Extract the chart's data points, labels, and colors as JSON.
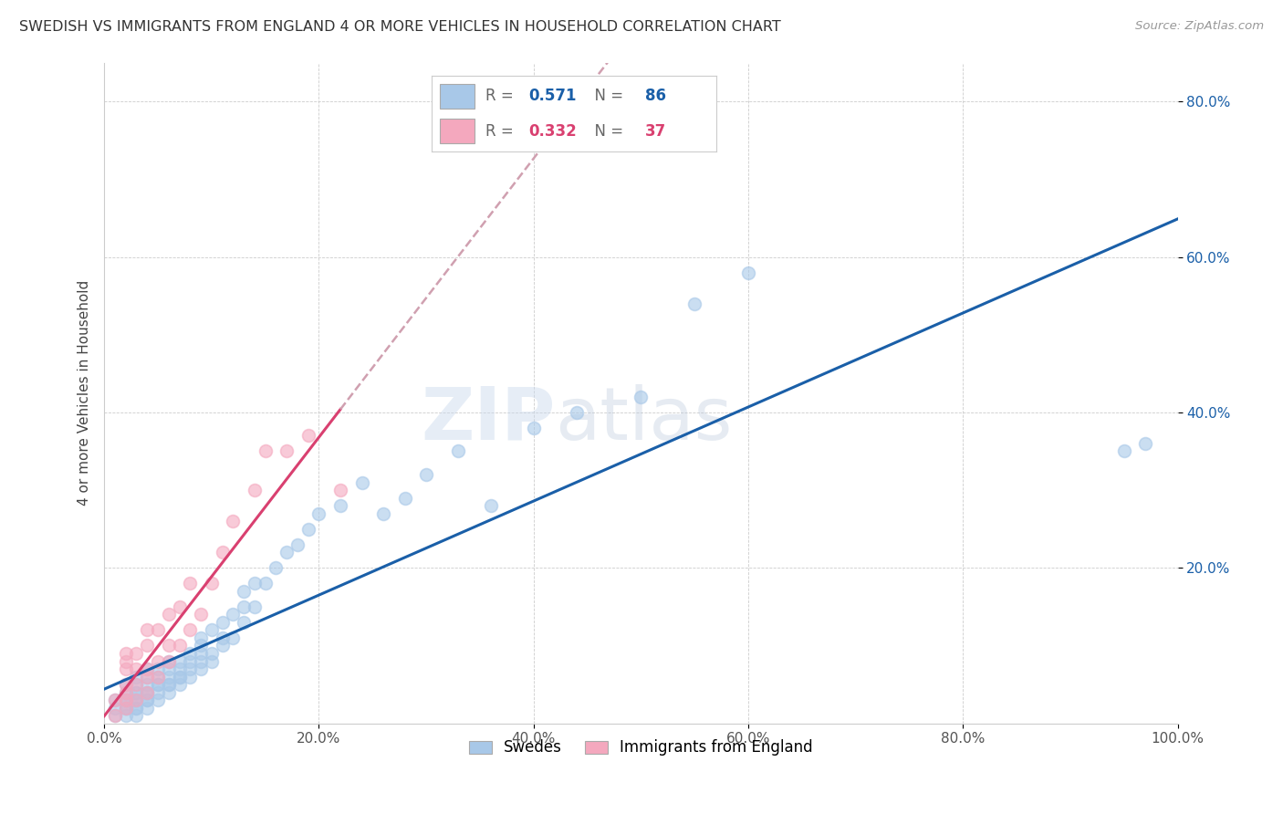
{
  "title": "SWEDISH VS IMMIGRANTS FROM ENGLAND 4 OR MORE VEHICLES IN HOUSEHOLD CORRELATION CHART",
  "source": "Source: ZipAtlas.com",
  "ylabel": "4 or more Vehicles in Household",
  "legend_label1": "Swedes",
  "legend_label2": "Immigrants from England",
  "r1": 0.571,
  "n1": 86,
  "r2": 0.332,
  "n2": 37,
  "color1": "#a8c8e8",
  "color2": "#f4a8be",
  "line_color1": "#1a5fa8",
  "line_color2": "#d94070",
  "dashed_line_color": "#d0a0b0",
  "watermark": "ZIPatlas",
  "xlim": [
    0.0,
    1.0
  ],
  "ylim": [
    0.0,
    0.85
  ],
  "xticks": [
    0.0,
    0.2,
    0.4,
    0.6,
    0.8,
    1.0
  ],
  "yticks": [
    0.2,
    0.4,
    0.6,
    0.8
  ],
  "xtick_labels": [
    "0.0%",
    "20.0%",
    "40.0%",
    "60.0%",
    "80.0%",
    "100.0%"
  ],
  "ytick_labels": [
    "20.0%",
    "40.0%",
    "60.0%",
    "80.0%"
  ],
  "swedes_x": [
    0.01,
    0.01,
    0.01,
    0.02,
    0.02,
    0.02,
    0.02,
    0.02,
    0.02,
    0.02,
    0.03,
    0.03,
    0.03,
    0.03,
    0.03,
    0.03,
    0.03,
    0.03,
    0.03,
    0.04,
    0.04,
    0.04,
    0.04,
    0.04,
    0.04,
    0.04,
    0.04,
    0.05,
    0.05,
    0.05,
    0.05,
    0.05,
    0.05,
    0.06,
    0.06,
    0.06,
    0.06,
    0.06,
    0.06,
    0.07,
    0.07,
    0.07,
    0.07,
    0.07,
    0.08,
    0.08,
    0.08,
    0.08,
    0.09,
    0.09,
    0.09,
    0.09,
    0.09,
    0.1,
    0.1,
    0.1,
    0.11,
    0.11,
    0.11,
    0.12,
    0.12,
    0.13,
    0.13,
    0.13,
    0.14,
    0.14,
    0.15,
    0.16,
    0.17,
    0.18,
    0.19,
    0.2,
    0.22,
    0.24,
    0.26,
    0.28,
    0.3,
    0.33,
    0.36,
    0.4,
    0.44,
    0.5,
    0.55,
    0.6,
    0.95,
    0.97
  ],
  "swedes_y": [
    0.01,
    0.02,
    0.03,
    0.01,
    0.02,
    0.02,
    0.03,
    0.03,
    0.04,
    0.05,
    0.01,
    0.02,
    0.02,
    0.03,
    0.03,
    0.04,
    0.04,
    0.05,
    0.06,
    0.02,
    0.03,
    0.03,
    0.04,
    0.04,
    0.05,
    0.06,
    0.07,
    0.03,
    0.04,
    0.05,
    0.05,
    0.06,
    0.07,
    0.04,
    0.05,
    0.05,
    0.06,
    0.07,
    0.08,
    0.05,
    0.06,
    0.06,
    0.07,
    0.08,
    0.06,
    0.07,
    0.08,
    0.09,
    0.07,
    0.08,
    0.09,
    0.1,
    0.11,
    0.08,
    0.09,
    0.12,
    0.1,
    0.11,
    0.13,
    0.11,
    0.14,
    0.13,
    0.15,
    0.17,
    0.15,
    0.18,
    0.18,
    0.2,
    0.22,
    0.23,
    0.25,
    0.27,
    0.28,
    0.31,
    0.27,
    0.29,
    0.32,
    0.35,
    0.28,
    0.38,
    0.4,
    0.42,
    0.54,
    0.58,
    0.35,
    0.36
  ],
  "england_x": [
    0.01,
    0.01,
    0.02,
    0.02,
    0.02,
    0.02,
    0.02,
    0.02,
    0.02,
    0.03,
    0.03,
    0.03,
    0.03,
    0.04,
    0.04,
    0.04,
    0.04,
    0.04,
    0.05,
    0.05,
    0.05,
    0.06,
    0.06,
    0.06,
    0.07,
    0.07,
    0.08,
    0.08,
    0.09,
    0.1,
    0.11,
    0.12,
    0.14,
    0.15,
    0.17,
    0.19,
    0.22
  ],
  "england_y": [
    0.01,
    0.03,
    0.02,
    0.03,
    0.04,
    0.05,
    0.07,
    0.08,
    0.09,
    0.03,
    0.05,
    0.07,
    0.09,
    0.04,
    0.06,
    0.07,
    0.1,
    0.12,
    0.06,
    0.08,
    0.12,
    0.08,
    0.1,
    0.14,
    0.1,
    0.15,
    0.12,
    0.18,
    0.14,
    0.18,
    0.22,
    0.26,
    0.3,
    0.35,
    0.35,
    0.37,
    0.3
  ]
}
